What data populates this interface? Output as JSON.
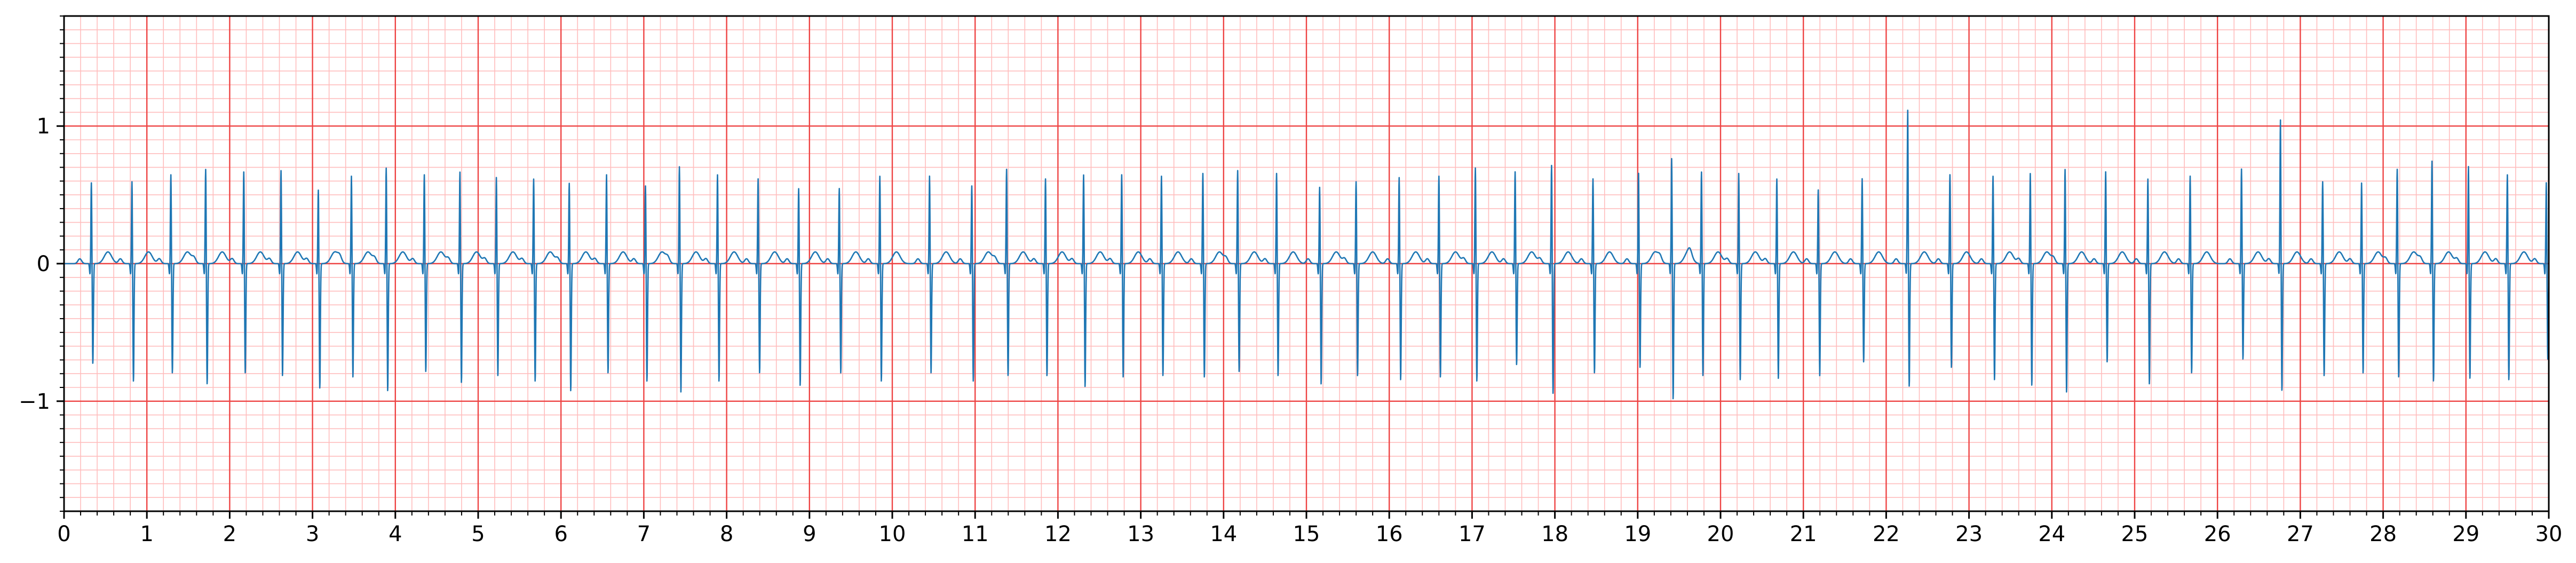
{
  "chart_data": {
    "type": "line",
    "title": "",
    "xlabel": "",
    "ylabel": "",
    "xlim": [
      0,
      30
    ],
    "ylim": [
      -1.8,
      1.8
    ],
    "x_ticks": [
      0,
      1,
      2,
      3,
      4,
      5,
      6,
      7,
      8,
      9,
      10,
      11,
      12,
      13,
      14,
      15,
      16,
      17,
      18,
      19,
      20,
      21,
      22,
      23,
      24,
      25,
      26,
      27,
      28,
      29,
      30
    ],
    "x_tick_labels": [
      "0",
      "1",
      "2",
      "3",
      "4",
      "5",
      "6",
      "7",
      "8",
      "9",
      "10",
      "11",
      "12",
      "13",
      "14",
      "15",
      "16",
      "17",
      "18",
      "19",
      "20",
      "21",
      "22",
      "23",
      "24",
      "25",
      "26",
      "27",
      "28",
      "29",
      "30"
    ],
    "y_ticks": [
      -1,
      0,
      1
    ],
    "y_tick_labels": [
      "−1",
      "0",
      "1"
    ],
    "x_minor_step": 0.2,
    "y_minor_step": 0.1,
    "grid": true,
    "colors": {
      "major_grid": "#ee4444",
      "minor_grid": "#ffbdbd",
      "trace": "#1f77b4",
      "axis": "#000000"
    },
    "series": [
      {
        "sampling": "approximate ECG trace, R-peak times (s) with peak amplitudes (mV)",
        "beats": [
          [
            0.33,
            0.6,
            -0.73
          ],
          [
            0.82,
            0.61,
            -0.86
          ],
          [
            1.29,
            0.66,
            -0.8
          ],
          [
            1.71,
            0.7,
            -0.88
          ],
          [
            2.17,
            0.68,
            -0.8
          ],
          [
            2.62,
            0.69,
            -0.82
          ],
          [
            3.07,
            0.55,
            -0.91
          ],
          [
            3.47,
            0.65,
            -0.83
          ],
          [
            3.89,
            0.71,
            -0.93
          ],
          [
            4.35,
            0.66,
            -0.79
          ],
          [
            4.78,
            0.68,
            -0.87
          ],
          [
            5.22,
            0.64,
            -0.82
          ],
          [
            5.67,
            0.63,
            -0.86
          ],
          [
            6.1,
            0.6,
            -0.93
          ],
          [
            6.55,
            0.66,
            -0.8
          ],
          [
            7.02,
            0.58,
            -0.86
          ],
          [
            7.43,
            0.72,
            -0.94
          ],
          [
            7.89,
            0.66,
            -0.86
          ],
          [
            8.38,
            0.63,
            -0.8
          ],
          [
            8.87,
            0.56,
            -0.89
          ],
          [
            9.36,
            0.56,
            -0.8
          ],
          [
            9.85,
            0.65,
            -0.86
          ],
          [
            10.45,
            0.65,
            -0.8
          ],
          [
            10.96,
            0.58,
            -0.86
          ],
          [
            11.38,
            0.7,
            -0.82
          ],
          [
            11.85,
            0.63,
            -0.82
          ],
          [
            12.31,
            0.66,
            -0.9
          ],
          [
            12.77,
            0.66,
            -0.83
          ],
          [
            13.25,
            0.65,
            -0.82
          ],
          [
            13.75,
            0.67,
            -0.83
          ],
          [
            14.17,
            0.69,
            -0.79
          ],
          [
            14.64,
            0.67,
            -0.82
          ],
          [
            15.16,
            0.57,
            -0.88
          ],
          [
            15.6,
            0.61,
            -0.82
          ],
          [
            16.12,
            0.64,
            -0.85
          ],
          [
            16.6,
            0.65,
            -0.83
          ],
          [
            17.04,
            0.71,
            -0.86
          ],
          [
            17.52,
            0.68,
            -0.74
          ],
          [
            17.96,
            0.73,
            -0.95
          ],
          [
            18.46,
            0.63,
            -0.8
          ],
          [
            19.01,
            0.67,
            -0.76
          ],
          [
            19.41,
            0.78,
            -0.99
          ],
          [
            19.77,
            0.68,
            -0.82
          ],
          [
            20.22,
            0.67,
            -0.85
          ],
          [
            20.68,
            0.63,
            -0.84
          ],
          [
            21.18,
            0.55,
            -0.82
          ],
          [
            21.71,
            0.63,
            -0.72
          ],
          [
            22.26,
            1.13,
            -0.9
          ],
          [
            22.77,
            0.66,
            -0.76
          ],
          [
            23.29,
            0.65,
            -0.85
          ],
          [
            23.74,
            0.67,
            -0.89
          ],
          [
            24.16,
            0.7,
            -0.94
          ],
          [
            24.65,
            0.68,
            -0.72
          ],
          [
            25.16,
            0.63,
            -0.88
          ],
          [
            25.67,
            0.65,
            -0.8
          ],
          [
            26.29,
            0.7,
            -0.7
          ],
          [
            26.76,
            1.06,
            -0.93
          ],
          [
            27.27,
            0.61,
            -0.82
          ],
          [
            27.74,
            0.6,
            -0.8
          ],
          [
            28.17,
            0.7,
            -0.83
          ],
          [
            28.59,
            0.76,
            -0.86
          ],
          [
            29.03,
            0.72,
            -0.84
          ],
          [
            29.5,
            0.66,
            -0.85
          ],
          [
            29.97,
            0.6,
            -0.7
          ]
        ]
      }
    ]
  }
}
